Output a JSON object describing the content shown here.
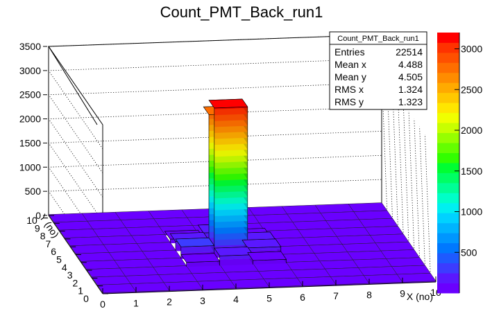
{
  "chart_data": {
    "type": "lego-3d-histogram",
    "title": "Count_PMT_Back_run1",
    "xlabel": "X (no)",
    "ylabel": "Y (no)",
    "x_ticks": [
      "0",
      "1",
      "2",
      "3",
      "4",
      "5",
      "6",
      "7",
      "8",
      "9",
      "10"
    ],
    "y_ticks": [
      "0",
      "1",
      "2",
      "3",
      "4",
      "5",
      "6",
      "7",
      "8",
      "9",
      "10"
    ],
    "z_ticks": [
      "0",
      "500",
      "1000",
      "1500",
      "2000",
      "2500",
      "3000",
      "3500"
    ],
    "zlim": [
      0,
      3500
    ],
    "palette_ticks": [
      "500",
      "1000",
      "1500",
      "2000",
      "2500",
      "3000"
    ],
    "palette_range": [
      0,
      3200
    ],
    "x_edges": [
      0,
      1,
      2,
      3,
      4,
      5,
      6,
      7,
      8,
      9,
      10
    ],
    "y_edges": [
      0,
      1,
      2,
      3,
      4,
      5,
      6,
      7,
      8,
      9,
      10
    ],
    "bins": [
      {
        "x": 4,
        "y": 4,
        "z": 3100
      },
      {
        "x": 4,
        "y": 5,
        "z": 2800
      },
      {
        "x": 3,
        "y": 4,
        "z": 250
      },
      {
        "x": 3,
        "y": 5,
        "z": 200
      },
      {
        "x": 5,
        "y": 4,
        "z": 180
      },
      {
        "x": 5,
        "y": 5,
        "z": 160
      },
      {
        "x": 4,
        "y": 3,
        "z": 200
      },
      {
        "x": 4,
        "y": 6,
        "z": 190
      },
      {
        "x": 3,
        "y": 3,
        "z": 90
      },
      {
        "x": 5,
        "y": 3,
        "z": 80
      },
      {
        "x": 3,
        "y": 6,
        "z": 85
      },
      {
        "x": 5,
        "y": 6,
        "z": 75
      }
    ],
    "background_z": 20,
    "stats": {
      "title": "Count_PMT_Back_run1",
      "rows": [
        {
          "label": "Entries",
          "value": "22514"
        },
        {
          "label": "Mean x",
          "value": "4.488"
        },
        {
          "label": "Mean y",
          "value": "4.505"
        },
        {
          "label": "RMS x",
          "value": "1.324"
        },
        {
          "label": "RMS y",
          "value": "1.323"
        }
      ]
    },
    "palette_colors": [
      "#6a00ff",
      "#5a18ff",
      "#3c3cff",
      "#1e5aff",
      "#0078ff",
      "#0096ff",
      "#00b4ff",
      "#00d2ff",
      "#00f0f0",
      "#00ffc8",
      "#00ff96",
      "#00ff64",
      "#00ff32",
      "#32ff00",
      "#64ff00",
      "#96ff00",
      "#c8ff00",
      "#f0ff00",
      "#ffe600",
      "#ffc800",
      "#ffaa00",
      "#ff8c00",
      "#ff6e00",
      "#ff5000",
      "#ff3200",
      "#ff0000"
    ]
  }
}
